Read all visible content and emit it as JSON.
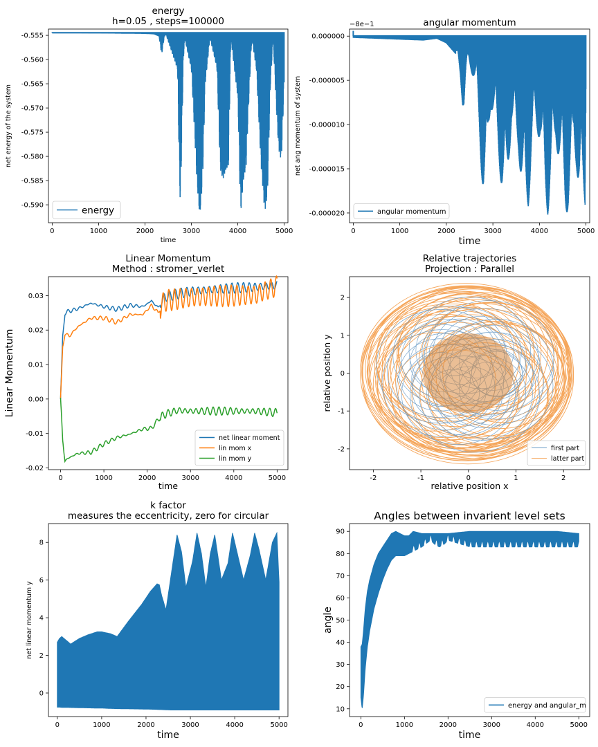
{
  "colors": {
    "blue": "#1f77b4",
    "orange": "#ff7f0e",
    "green": "#2ca02c",
    "orange_traj": "#f5a65b",
    "blue_traj": "#6b9cc6",
    "traj_fill": "#d8883e"
  },
  "chart_data": [
    {
      "type": "line",
      "title": "energy\nh=0.05 , steps=100000",
      "title_lines": [
        "energy",
        "h=0.05 , steps=100000"
      ],
      "xlabel": "time",
      "ylabel": "net energy of the system",
      "xlim": [
        -80,
        5080
      ],
      "ylim": [
        -0.5937,
        -0.5537
      ],
      "xticks": [
        "0",
        "1000",
        "2000",
        "3000",
        "4000",
        "5000"
      ],
      "xtick_values": [
        0,
        1000,
        2000,
        3000,
        4000,
        5000
      ],
      "yticks": [
        "-0.555",
        "-0.560",
        "-0.565",
        "-0.570",
        "-0.575",
        "-0.580",
        "-0.585",
        "-0.590"
      ],
      "ytick_values": [
        -0.555,
        -0.56,
        -0.565,
        -0.57,
        -0.575,
        -0.58,
        -0.585,
        -0.59
      ],
      "grid": false,
      "legend": "lower left",
      "series": [
        {
          "name": "energy",
          "baseline": -0.5545,
          "x": [
            0,
            2000,
            2200,
            2300,
            2330,
            2360,
            2390,
            2420,
            2450,
            2700,
            2740,
            2760,
            2790,
            2820,
            2850,
            3000,
            3120,
            3180,
            3240,
            3300,
            3400,
            3550,
            3620,
            3680,
            3740,
            3800,
            3850,
            4000,
            4060,
            4120,
            4180,
            4240,
            4300,
            4400,
            4500,
            4580,
            4640,
            4700,
            4760,
            4820,
            4880,
            4940,
            5000
          ],
          "y_min": [
            -0.5545,
            -0.5547,
            -0.5548,
            -0.5552,
            -0.557,
            -0.5592,
            -0.557,
            -0.5553,
            -0.5548,
            -0.562,
            -0.5827,
            -0.59,
            -0.579,
            -0.5626,
            -0.5555,
            -0.562,
            -0.5853,
            -0.5928,
            -0.5853,
            -0.565,
            -0.5555,
            -0.5618,
            -0.5825,
            -0.5848,
            -0.5831,
            -0.5818,
            -0.5555,
            -0.568,
            -0.5922,
            -0.5853,
            -0.5818,
            -0.568,
            -0.5555,
            -0.562,
            -0.5818,
            -0.5915,
            -0.5882,
            -0.566,
            -0.5555,
            -0.568,
            -0.5787,
            -0.581,
            -0.565
          ]
        }
      ]
    },
    {
      "type": "line",
      "title": "angular momentum",
      "xlabel": "time",
      "ylabel": "net ang momentum of system",
      "offset_text": "−8e−1",
      "xlim": [
        -80,
        5080
      ],
      "ylim": [
        -2.11e-05,
        8e-07
      ],
      "xticks": [
        "0",
        "1000",
        "2000",
        "3000",
        "4000",
        "5000"
      ],
      "xtick_values": [
        0,
        1000,
        2000,
        3000,
        4000,
        5000
      ],
      "yticks": [
        "0.000000",
        "-0.000005",
        "-0.000010",
        "-0.000015",
        "-0.000020"
      ],
      "ytick_values": [
        0,
        -5e-06,
        -1e-05,
        -1.5e-05,
        -2e-05
      ],
      "grid": false,
      "legend": "lower left",
      "series": [
        {
          "name": "angular momentum",
          "baseline": 0.0,
          "x": [
            0,
            1500,
            1800,
            2000,
            2200,
            2300,
            2350,
            2380,
            2420,
            2480,
            2650,
            2750,
            2800,
            2850,
            2900,
            2950,
            3050,
            3200,
            3270,
            3320,
            3400,
            3550,
            3650,
            3700,
            3760,
            3820,
            3900,
            4020,
            4120,
            4180,
            4250,
            4350,
            4450,
            4550,
            4620,
            4680,
            4740,
            4800,
            4860,
            4920,
            4980,
            5000
          ],
          "y_min": [
            -2e-07,
            -5e-07,
            -3e-07,
            -8e-07,
            -2e-06,
            -5e-06,
            -7.8e-06,
            -8.2e-06,
            -5e-06,
            -3e-06,
            -6e-06,
            -1.5e-05,
            -1.9e-05,
            -1.95e-05,
            -1.2e-05,
            -8e-06,
            -1e-05,
            -1.8e-05,
            -1.98e-05,
            -1.6e-05,
            -1e-05,
            -1.3e-05,
            -1.95e-05,
            -2.02e-05,
            -1.95e-05,
            -1.5e-05,
            -1e-05,
            -1.2e-05,
            -1.9e-05,
            -2.02e-05,
            -1.7e-05,
            -1.2e-05,
            -1.5e-05,
            -1.98e-05,
            -2e-05,
            -1.8e-05,
            -1.2e-05,
            -1.5e-05,
            -1.98e-05,
            -1.9e-05,
            -1.95e-05,
            -6e-06
          ]
        }
      ]
    },
    {
      "type": "line",
      "title": "Linear Momentum\nMethod : stromer_verlet",
      "title_lines": [
        "Linear Momentum",
        "Method : stromer_verlet"
      ],
      "xlabel": "time",
      "ylabel": "Linear Momentum",
      "xlim": [
        -280,
        5250
      ],
      "ylim": [
        -0.0205,
        0.0355
      ],
      "xticks": [
        "0",
        "1000",
        "2000",
        "3000",
        "4000",
        "5000"
      ],
      "xtick_values": [
        0,
        1000,
        2000,
        3000,
        4000,
        5000
      ],
      "yticks": [
        "0.03",
        "0.02",
        "0.01",
        "0.00",
        "-0.01",
        "-0.02"
      ],
      "ytick_values": [
        0.03,
        0.02,
        0.01,
        0.0,
        -0.01,
        -0.02
      ],
      "grid": false,
      "legend": "lower right",
      "series": [
        {
          "name": "net linear moment",
          "x": [
            0,
            50,
            100,
            200,
            400,
            700,
            1000,
            1300,
            1600,
            1900,
            2100,
            2250,
            2400,
            2700,
            3000,
            3500,
            4000,
            4500,
            5000
          ],
          "y": [
            0.0,
            0.018,
            0.025,
            0.0255,
            0.0262,
            0.0278,
            0.0268,
            0.026,
            0.0272,
            0.0268,
            0.0285,
            0.0265,
            0.0295,
            0.0305,
            0.0312,
            0.0318,
            0.0322,
            0.0325,
            0.033
          ]
        },
        {
          "name": "lin mom x",
          "x": [
            0,
            50,
            100,
            200,
            400,
            700,
            1000,
            1300,
            1600,
            1900,
            2100,
            2250,
            2400,
            2700,
            3000,
            3500,
            4000,
            4500,
            5000
          ],
          "y": [
            0.0,
            0.015,
            0.019,
            0.0182,
            0.021,
            0.0235,
            0.0235,
            0.0222,
            0.0245,
            0.0245,
            0.0272,
            0.025,
            0.0285,
            0.029,
            0.0295,
            0.0298,
            0.03,
            0.0302,
            0.0328
          ]
        },
        {
          "name": "lin mom y",
          "x": [
            0,
            50,
            100,
            200,
            400,
            700,
            1000,
            1300,
            1600,
            1900,
            2100,
            2250,
            2400,
            2700,
            3000,
            3500,
            4000,
            4500,
            5000
          ],
          "y": [
            0.0,
            -0.012,
            -0.018,
            -0.017,
            -0.0158,
            -0.0155,
            -0.013,
            -0.0112,
            -0.0102,
            -0.0087,
            -0.0085,
            -0.006,
            -0.0045,
            -0.0033,
            -0.0035,
            -0.0035,
            -0.0035,
            -0.0035,
            -0.004
          ]
        }
      ]
    },
    {
      "type": "scatter",
      "title": "Relative trajectories\nProjection : Parallel",
      "title_lines": [
        "Relative trajectories",
        "Projection : Parallel"
      ],
      "xlabel": "relative position x",
      "ylabel": "relative position y",
      "xlim": [
        -2.5,
        2.55
      ],
      "ylim": [
        -2.55,
        2.55
      ],
      "xticks": [
        "-2",
        "-1",
        "0",
        "1",
        "2"
      ],
      "xtick_values": [
        -2,
        -1,
        0,
        1,
        2
      ],
      "yticks": [
        "2",
        "1",
        "0",
        "-1",
        "-2"
      ],
      "ytick_values": [
        2,
        1,
        0,
        -1,
        -2
      ],
      "grid": false,
      "legend": "lower right",
      "series": [
        {
          "name": "first part",
          "rx": 1.9,
          "ry": 2.1
        },
        {
          "name": "latter part",
          "rx": 2.3,
          "ry": 2.3
        }
      ]
    },
    {
      "type": "line",
      "title": "k factor\nmeasures the eccentricity, zero for circular",
      "title_lines": [
        "k factor",
        "measures the eccentricity, zero for circular"
      ],
      "xlabel": "time",
      "ylabel": "net linear momentum y",
      "xlim": [
        -200,
        5200
      ],
      "ylim": [
        -1.25,
        9.0
      ],
      "xticks": [
        "0",
        "1000",
        "2000",
        "3000",
        "4000",
        "5000"
      ],
      "xtick_values": [
        0,
        1000,
        2000,
        3000,
        4000,
        5000
      ],
      "yticks": [
        "8",
        "6",
        "4",
        "2",
        "0"
      ],
      "ytick_values": [
        8,
        6,
        4,
        2,
        0
      ],
      "grid": false,
      "legend": "none",
      "series": [
        {
          "name": "",
          "x": [
            0,
            50,
            100,
            200,
            300,
            500,
            700,
            900,
            1000,
            1100,
            1200,
            1350,
            1600,
            1900,
            2100,
            2250,
            2300,
            2350,
            2450,
            2550,
            2700,
            2800,
            2900,
            3050,
            3150,
            3250,
            3350,
            3450,
            3550,
            3700,
            3850,
            3950,
            4050,
            4200,
            4350,
            4450,
            4550,
            4700,
            4850,
            4950,
            5000
          ],
          "y_max": [
            2.7,
            2.9,
            3.0,
            2.8,
            2.6,
            2.9,
            3.1,
            3.25,
            3.25,
            3.2,
            3.15,
            3.0,
            3.8,
            4.7,
            5.4,
            5.8,
            5.75,
            5.2,
            4.4,
            6.0,
            8.4,
            7.5,
            5.6,
            7.0,
            8.5,
            7.4,
            5.6,
            7.4,
            8.4,
            6.0,
            6.9,
            8.5,
            7.5,
            6.0,
            7.3,
            8.5,
            7.6,
            6.0,
            8.0,
            8.5,
            5.9
          ],
          "y_min": [
            -0.75,
            -0.75,
            -0.76,
            -0.76,
            -0.77,
            -0.78,
            -0.79,
            -0.8,
            -0.8,
            -0.81,
            -0.82,
            -0.83,
            -0.84,
            -0.85,
            -0.86,
            -0.87,
            -0.88,
            -0.88,
            -0.89,
            -0.9,
            -0.9,
            -0.9,
            -0.9,
            -0.9,
            -0.9,
            -0.9,
            -0.9,
            -0.9,
            -0.9,
            -0.9,
            -0.9,
            -0.9,
            -0.9,
            -0.9,
            -0.9,
            -0.9,
            -0.9,
            -0.9,
            -0.9,
            -0.9,
            -0.9
          ]
        }
      ]
    },
    {
      "type": "line",
      "title": "Angles between invarient level sets",
      "xlabel": "time",
      "ylabel": "angle",
      "xlim": [
        -260,
        5250
      ],
      "ylim": [
        6.5,
        93.5
      ],
      "xticks": [
        "0",
        "1000",
        "2000",
        "3000",
        "4000",
        "5000"
      ],
      "xtick_values": [
        0,
        1000,
        2000,
        3000,
        4000,
        5000
      ],
      "yticks": [
        "90",
        "80",
        "70",
        "60",
        "50",
        "40",
        "30",
        "20",
        "10"
      ],
      "ytick_values": [
        90,
        80,
        70,
        60,
        50,
        40,
        30,
        20,
        10
      ],
      "grid": false,
      "legend": "lower right",
      "series": [
        {
          "name": "energy and angular_m",
          "x": [
            0,
            30,
            60,
            100,
            150,
            200,
            300,
            400,
            500,
            600,
            700,
            800,
            900,
            1000,
            1100,
            1200,
            1400,
            1600,
            1700,
            1800,
            1900,
            2000,
            2500,
            3000,
            3500,
            4000,
            4500,
            5000
          ],
          "y_max": [
            38,
            39,
            45,
            55,
            63,
            68,
            75,
            80,
            83,
            86,
            89,
            90,
            89,
            88,
            88,
            90,
            89,
            89,
            89,
            89,
            89,
            89,
            90,
            90,
            90,
            90,
            90,
            89
          ],
          "y_min": [
            15,
            10,
            16,
            28,
            38,
            45,
            55,
            62,
            68,
            73,
            77,
            79,
            79,
            79,
            80,
            81,
            83,
            86,
            84,
            83,
            84,
            86,
            83,
            83,
            83,
            83,
            83,
            83
          ]
        }
      ]
    }
  ]
}
